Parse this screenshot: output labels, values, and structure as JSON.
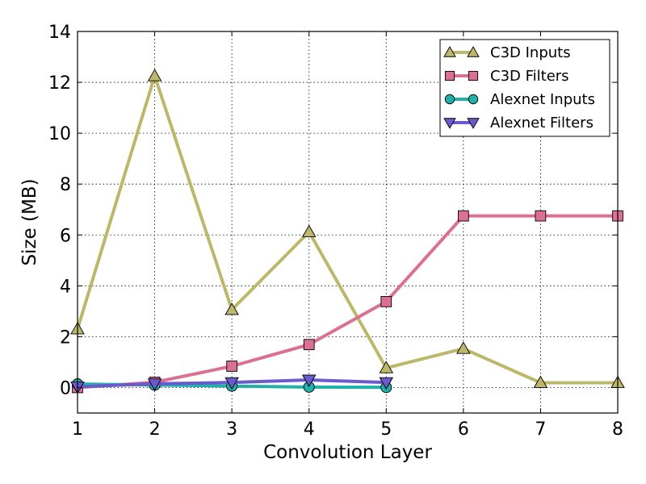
{
  "chart_data": {
    "type": "line",
    "title": "",
    "xlabel": "Convolution Layer",
    "ylabel": "Size (MB)",
    "xlim": [
      1,
      8
    ],
    "ylim": [
      -1,
      14
    ],
    "xticks": [
      "1",
      "2",
      "3",
      "4",
      "5",
      "6",
      "7",
      "8"
    ],
    "yticks": [
      "0",
      "2",
      "4",
      "6",
      "8",
      "10",
      "12",
      "14"
    ],
    "grid": true,
    "legend_position": "top-right",
    "series": [
      {
        "name": "C3D Inputs",
        "color": "#bdb76b",
        "marker": "triangle-up",
        "x": [
          1,
          2,
          3,
          4,
          5,
          6,
          7,
          8
        ],
        "values": [
          2.3,
          12.25,
          3.06,
          6.12,
          0.77,
          1.53,
          0.19,
          0.19
        ]
      },
      {
        "name": "C3D Filters",
        "color": "#db7093",
        "marker": "square",
        "x": [
          1,
          2,
          3,
          4,
          5,
          6,
          7,
          8
        ],
        "values": [
          0.0,
          0.21,
          0.84,
          1.69,
          3.38,
          6.75,
          6.75,
          6.75
        ]
      },
      {
        "name": "Alexnet Inputs",
        "color": "#20b2aa",
        "marker": "circle",
        "x": [
          1,
          2,
          3,
          4,
          5
        ],
        "values": [
          0.14,
          0.1,
          0.06,
          0.02,
          0.01
        ]
      },
      {
        "name": "Alexnet Filters",
        "color": "#6a5acd",
        "marker": "triangle-down",
        "x": [
          1,
          2,
          3,
          4,
          5
        ],
        "values": [
          0.03,
          0.15,
          0.2,
          0.3,
          0.2
        ]
      }
    ]
  }
}
